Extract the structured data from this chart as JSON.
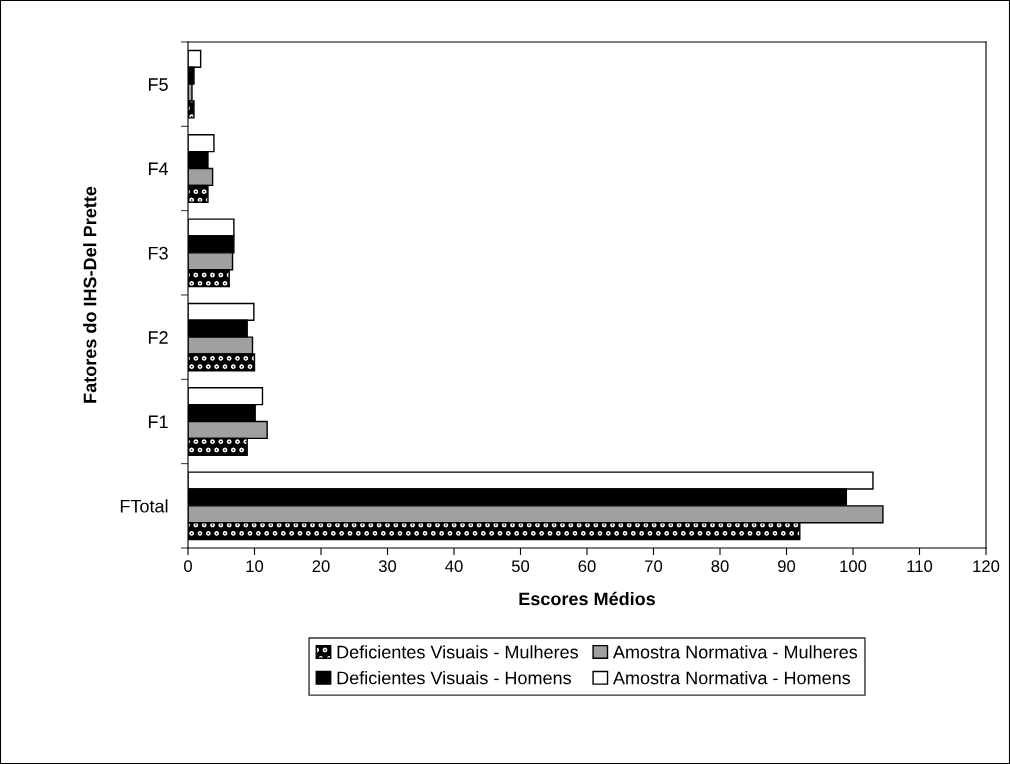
{
  "chart_data": {
    "type": "bar",
    "orientation": "horizontal",
    "xlabel": "Escores Médios",
    "ylabel": "Fatores do IHS-Del Prette",
    "categories": [
      "F5",
      "F4",
      "F3",
      "F2",
      "F1",
      "FTotal"
    ],
    "series": [
      {
        "name": "Amostra Normativa - Homens",
        "color": "#ffffff",
        "values": [
          1.9,
          3.9,
          6.9,
          9.9,
          11.2,
          103
        ]
      },
      {
        "name": "Deficientes Visuais - Homens",
        "color": "#000000",
        "values": [
          0.9,
          3.0,
          6.9,
          8.9,
          10.1,
          99
        ]
      },
      {
        "name": "Amostra Normativa - Mulheres",
        "color": "#a0a0a0",
        "values": [
          0.6,
          3.7,
          6.7,
          9.7,
          11.9,
          104.5
        ]
      },
      {
        "name": "Deficientes Visuais - Mulheres",
        "color": "#000000",
        "values": [
          0.9,
          3.0,
          6.2,
          10.0,
          8.9,
          92
        ]
      }
    ],
    "xlim": [
      0,
      120
    ],
    "xticks": [
      0,
      10,
      20,
      30,
      40,
      50,
      60,
      70,
      80,
      90,
      100,
      110,
      120
    ],
    "grid": false,
    "legend": "bottom"
  }
}
